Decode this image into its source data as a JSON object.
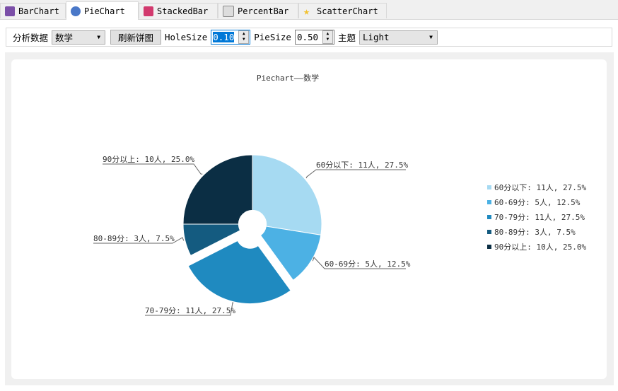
{
  "tabs": [
    {
      "label": "BarChart",
      "icon": "bar-chart-icon",
      "color": "#7b4fa8"
    },
    {
      "label": "PieChart",
      "icon": "pie-chart-icon",
      "color": "#4a78c8",
      "active": true
    },
    {
      "label": "StackedBar",
      "icon": "stacked-bar-icon",
      "color": "#d23a6e"
    },
    {
      "label": "PercentBar",
      "icon": "percent-bar-icon",
      "color": "#c8c8c8"
    },
    {
      "label": "ScatterChart",
      "icon": "star-icon",
      "color": "#f2c230"
    }
  ],
  "toolbar": {
    "data_label": "分析数据",
    "data_value": "数学",
    "refresh_label": "刷新饼图",
    "hole_label": "HoleSize",
    "hole_value": "0.10",
    "pie_label": "PieSize",
    "pie_value": "0.50",
    "theme_label": "主题",
    "theme_value": "Light"
  },
  "chart_data": {
    "type": "pie",
    "title": "Piechart——数学",
    "hole_size": 0.1,
    "pie_size": 0.5,
    "legend_position": "right",
    "slices": [
      {
        "label": "60分以下: 11人, 27.5%",
        "value": 11,
        "percent": 27.5,
        "color": "#a6daf2",
        "exploded": false
      },
      {
        "label": "60-69分: 5人, 12.5%",
        "value": 5,
        "percent": 12.5,
        "color": "#4cb1e4",
        "exploded": false
      },
      {
        "label": "70-79分: 11人, 27.5%",
        "value": 11,
        "percent": 27.5,
        "color": "#1f8ac0",
        "exploded": true
      },
      {
        "label": "80-89分: 3人, 7.5%",
        "value": 3,
        "percent": 7.5,
        "color": "#145b80",
        "exploded": false
      },
      {
        "label": "90分以上: 10人, 25.0%",
        "value": 10,
        "percent": 25.0,
        "color": "#0b2e44",
        "exploded": false
      }
    ]
  }
}
